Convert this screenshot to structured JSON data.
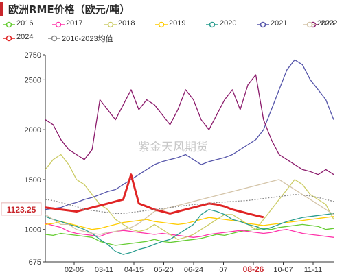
{
  "title": "欧洲RME价格（欧元/吨）",
  "watermark": "紫金天风期货",
  "last_value_label": "1123.25",
  "highlight_x_label": "08-26",
  "colors": {
    "accent": "#c9262c",
    "axis": "#333333"
  },
  "chart_data": {
    "type": "line",
    "title": "欧洲RME价格（欧元/吨）",
    "ylim": [
      675,
      2750
    ],
    "y_ticks": [
      675,
      1000,
      1500,
      2000,
      2500,
      2750
    ],
    "x_ticks": [
      "02-05",
      "03-11",
      "04-15",
      "05-20",
      "06-24",
      "07",
      "08-26",
      "10-07",
      "11-11"
    ],
    "grid": false,
    "legend_position": "top",
    "series": [
      {
        "name": "2016",
        "color": "#66cc33",
        "values": [
          950,
          940,
          960,
          950,
          940,
          930,
          920,
          880,
          860,
          840,
          850,
          860,
          870,
          880,
          900,
          880,
          870,
          880,
          890,
          900,
          910,
          930,
          950,
          940,
          960,
          980,
          990,
          1000,
          1010,
          1000,
          1020,
          1030,
          1040,
          1050,
          1040,
          1030,
          1000,
          1010
        ]
      },
      {
        "name": "2017",
        "color": "#ff33aa",
        "values": [
          1060,
          1040,
          1020,
          980,
          960,
          950,
          940,
          930,
          960,
          980,
          990,
          980,
          970,
          960,
          950,
          960,
          950,
          940,
          930,
          920,
          930,
          950,
          960,
          970,
          980,
          990,
          980,
          970,
          960,
          970,
          990,
          1000,
          980,
          960,
          950,
          940,
          930,
          920
        ]
      },
      {
        "name": "2018",
        "color": "#cccc66",
        "values": [
          1600,
          1700,
          1750,
          1650,
          1500,
          1450,
          1350,
          1250,
          1200,
          1100,
          1050,
          1000,
          980,
          1000,
          1050,
          1000,
          950,
          900,
          920,
          950,
          1000,
          1050,
          1100,
          1150,
          1150,
          1100,
          1050,
          1000,
          1100,
          1200,
          1300,
          1400,
          1500,
          1450,
          1350,
          1300,
          1250,
          1100
        ]
      },
      {
        "name": "2019",
        "color": "#ffcc00",
        "values": [
          1050,
          1060,
          1080,
          1060,
          1040,
          1020,
          1000,
          1010,
          1030,
          1050,
          1070,
          1080,
          1090,
          1100,
          1080,
          1070,
          1060,
          1050,
          1060,
          1080,
          1100,
          1120,
          1110,
          1100,
          1090,
          1080,
          1060,
          1050,
          1040,
          1050,
          1060,
          1070,
          1080,
          1090,
          1100,
          1110,
          1120,
          1130
        ]
      },
      {
        "name": "2020",
        "color": "#2a9d8f",
        "values": [
          1130,
          1100,
          1080,
          1050,
          1030,
          1000,
          960,
          900,
          850,
          780,
          750,
          770,
          800,
          820,
          850,
          880,
          900,
          950,
          1000,
          1050,
          1150,
          1200,
          1180,
          1150,
          1100,
          1080,
          1050,
          1030,
          1000,
          1020,
          1050,
          1080,
          1100,
          1120,
          1130,
          1140,
          1150,
          1160
        ]
      },
      {
        "name": "2021",
        "color": "#5555aa",
        "values": [
          1200,
          1210,
          1220,
          1250,
          1270,
          1300,
          1320,
          1350,
          1380,
          1400,
          1450,
          1500,
          1550,
          1600,
          1650,
          1680,
          1700,
          1720,
          1750,
          1700,
          1650,
          1680,
          1700,
          1720,
          1750,
          1800,
          1850,
          1900,
          2000,
          2200,
          2400,
          2600,
          2700,
          2650,
          2500,
          2400,
          2300,
          2100
        ]
      },
      {
        "name": "2022",
        "color": "#8b1a6b",
        "values": [
          2100,
          2050,
          1900,
          1800,
          1750,
          1700,
          1800,
          2300,
          2200,
          2100,
          2250,
          2400,
          2200,
          2300,
          2250,
          2150,
          2050,
          2200,
          2400,
          2300,
          2100,
          2000,
          2150,
          2300,
          2400,
          2200,
          2450,
          2550,
          2100,
          1900,
          1750,
          1700,
          1650,
          1600,
          1580,
          1550,
          1600,
          1550
        ]
      },
      {
        "name": "2023",
        "color": "#d4c4a8",
        "values": [
          1150,
          1100,
          1050,
          1050,
          1000,
          980,
          960,
          950,
          970,
          980,
          1000,
          1020,
          1060,
          1120,
          1180,
          1200,
          1220,
          1240,
          1260,
          1280,
          1300,
          1320,
          1340,
          1360,
          1380,
          1400,
          1420,
          1440,
          1460,
          1480,
          1500,
          1450,
          1400,
          1350,
          1300,
          1250,
          1200,
          1150
        ]
      },
      {
        "name": "2024",
        "color": "#e02424",
        "values": [
          1220,
          1210,
          1200,
          1190,
          1180,
          1200,
          1220,
          1240,
          1260,
          1280,
          1300,
          1550,
          1260,
          1230,
          1200,
          1180,
          1160,
          1180,
          1200,
          1220,
          1240,
          1260,
          1250,
          1230,
          1200,
          1180,
          1160,
          1140,
          1123.25
        ]
      },
      {
        "name": "2016-2023均值",
        "color": "#888888",
        "dashed": true,
        "values": [
          1300,
          1290,
          1270,
          1250,
          1230,
          1200,
          1190,
          1180,
          1170,
          1160,
          1160,
          1170,
          1180,
          1190,
          1200,
          1210,
          1220,
          1230,
          1240,
          1250,
          1255,
          1260,
          1270,
          1275,
          1280,
          1285,
          1290,
          1300,
          1310,
          1320,
          1330,
          1340,
          1350,
          1345,
          1335,
          1320,
          1300,
          1280
        ]
      }
    ]
  }
}
